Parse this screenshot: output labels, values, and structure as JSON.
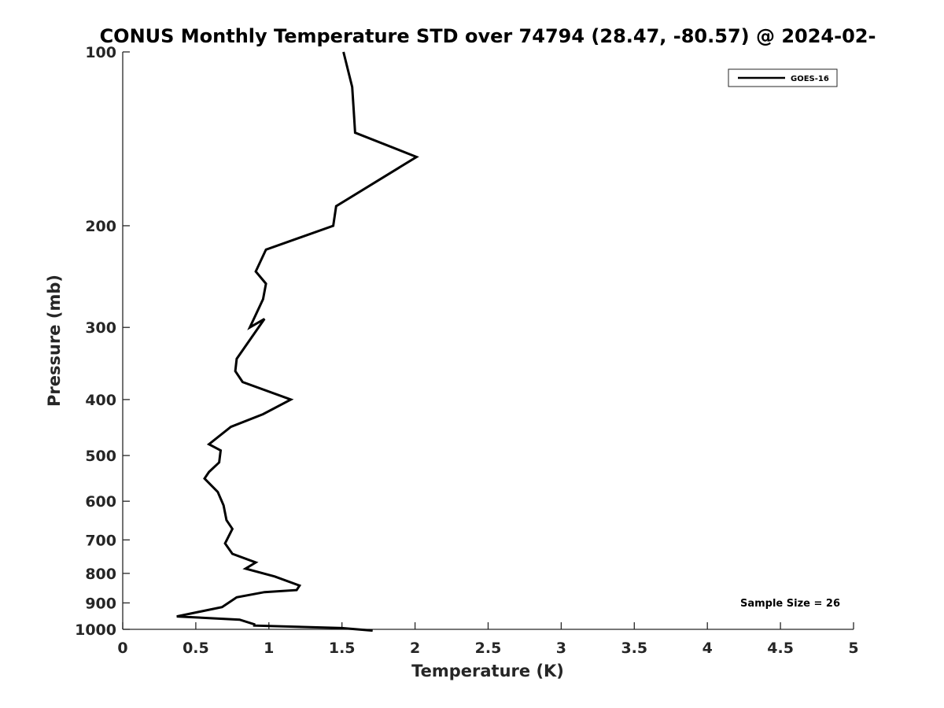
{
  "chart_data": {
    "type": "line",
    "title": "CONUS Monthly Temperature STD over 74794 (28.47, -80.57) @ 2024-02-",
    "xlabel": "Temperature (K)",
    "ylabel": "Pressure (mb)",
    "xlim": [
      0,
      5
    ],
    "ylim": [
      100,
      1000
    ],
    "yscale": "log",
    "y_reversed": true,
    "grid": false,
    "legend_position": "top-right",
    "x_ticks": [
      "0",
      "0.5",
      "1",
      "1.5",
      "2",
      "2.5",
      "3",
      "3.5",
      "4",
      "4.5",
      "5"
    ],
    "y_ticks": [
      "100",
      "200",
      "300",
      "400",
      "500",
      "600",
      "700",
      "800",
      "900",
      "1000"
    ],
    "line_color": "#000000",
    "series": [
      {
        "name": "GOES-16",
        "x": [
          1.51,
          1.57,
          1.58,
          1.59,
          2.01,
          1.46,
          1.44,
          0.98,
          0.91,
          0.98,
          0.96,
          0.87,
          0.97,
          0.78,
          0.77,
          0.82,
          1.15,
          0.96,
          0.74,
          0.59,
          0.67,
          0.66,
          0.59,
          0.56,
          0.65,
          0.69,
          0.71,
          0.75,
          0.7,
          0.75,
          0.91,
          0.84,
          1.04,
          1.21,
          1.19,
          0.97,
          0.78,
          0.68,
          0.37,
          0.8,
          0.9,
          0.9,
          1.5,
          1.71
        ],
        "y": [
          100,
          115,
          126,
          138,
          152,
          185,
          200,
          220,
          240,
          252,
          268,
          300,
          290,
          340,
          357,
          373,
          400,
          424,
          446,
          478,
          490,
          514,
          534,
          548,
          578,
          610,
          647,
          670,
          710,
          740,
          766,
          785,
          810,
          840,
          855,
          862,
          880,
          915,
          950,
          962,
          980,
          985,
          995,
          1005
        ]
      }
    ],
    "annotations": [
      "Sample Size = 26"
    ]
  }
}
